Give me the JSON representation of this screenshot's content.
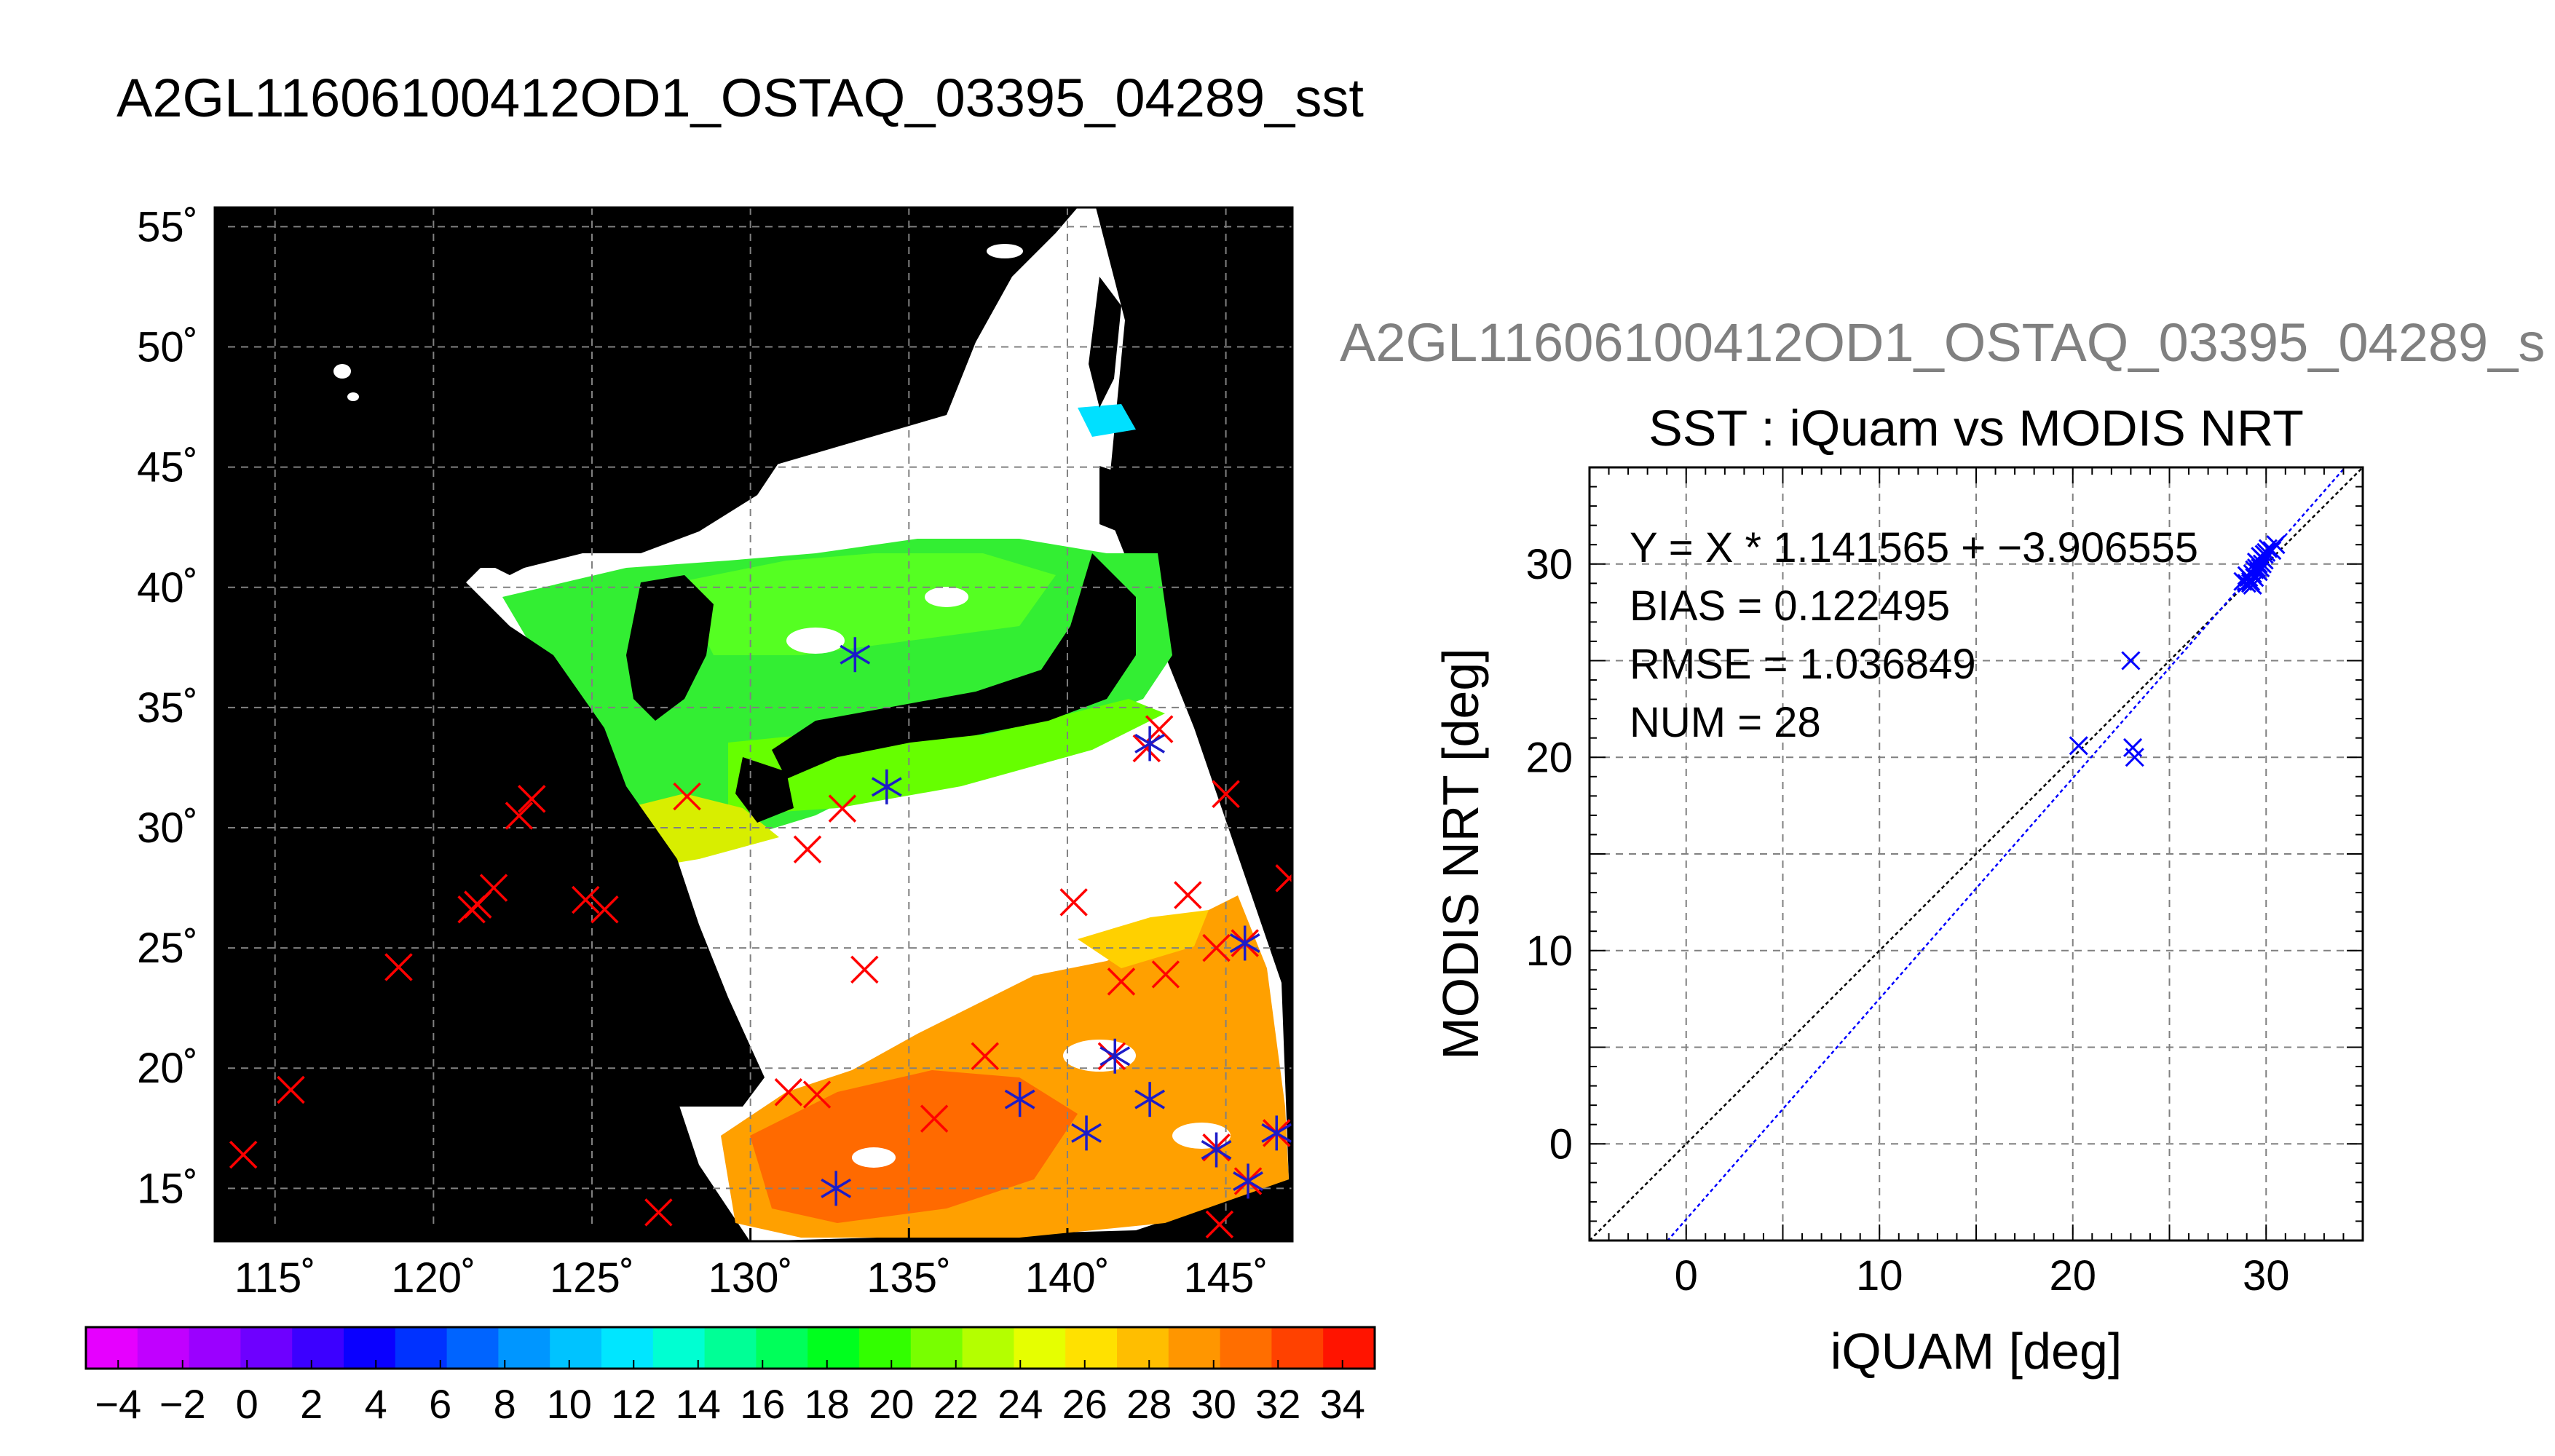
{
  "title_main": "A2GL11606100412OD1_OSTAQ_03395_04289_sst",
  "title_secondary": "A2GL11606100412OD1_OSTAQ_03395_04289_s",
  "colors": {
    "map_background": "#000000",
    "cloud": "#ffffff",
    "grid": "#808080",
    "red_marker": "#ff0000",
    "blue_marker": "#1c1cc8",
    "fit_line": "#0000ff",
    "identity_line": "#000000"
  },
  "chart_data": [
    {
      "type": "map",
      "name": "sst-map",
      "lon_ticks": [
        "115˚",
        "120˚",
        "125˚",
        "130˚",
        "135˚",
        "140˚",
        "145˚"
      ],
      "lat_ticks": [
        "15˚",
        "20˚",
        "25˚",
        "30˚",
        "35˚",
        "40˚",
        "45˚",
        "50˚",
        "55˚"
      ],
      "lon_range": [
        113.1,
        147.1
      ],
      "lat_range": [
        12.8,
        55.8
      ],
      "grid": true,
      "red_markers": [
        [
          114.0,
          16.4
        ],
        [
          115.5,
          19.1
        ],
        [
          118.9,
          24.2
        ],
        [
          121.2,
          26.6
        ],
        [
          121.4,
          26.8
        ],
        [
          121.9,
          27.5
        ],
        [
          122.7,
          30.5
        ],
        [
          123.1,
          31.2
        ],
        [
          124.8,
          27.0
        ],
        [
          125.4,
          26.6
        ],
        [
          127.1,
          14.0
        ],
        [
          128.0,
          31.3
        ],
        [
          131.2,
          19.0
        ],
        [
          131.8,
          29.1
        ],
        [
          132.1,
          18.9
        ],
        [
          132.9,
          30.8
        ],
        [
          133.6,
          24.1
        ],
        [
          135.8,
          17.9
        ],
        [
          137.4,
          20.5
        ],
        [
          140.2,
          26.9
        ],
        [
          141.4,
          20.5
        ],
        [
          141.7,
          23.6
        ],
        [
          142.5,
          33.3
        ],
        [
          142.9,
          34.1
        ],
        [
          143.1,
          23.9
        ],
        [
          143.8,
          27.2
        ],
        [
          144.7,
          16.7
        ],
        [
          144.7,
          25.0
        ],
        [
          144.8,
          13.5
        ],
        [
          145.0,
          31.4
        ],
        [
          145.6,
          25.2
        ],
        [
          145.7,
          15.3
        ],
        [
          146.6,
          17.3
        ],
        [
          147.0,
          27.9
        ]
      ],
      "blue_stars": [
        [
          133.3,
          37.2
        ],
        [
          134.3,
          31.7
        ],
        [
          132.7,
          15.0
        ],
        [
          138.5,
          18.7
        ],
        [
          140.6,
          17.3
        ],
        [
          141.5,
          20.5
        ],
        [
          142.6,
          18.7
        ],
        [
          142.6,
          33.5
        ],
        [
          144.7,
          16.6
        ],
        [
          145.6,
          25.2
        ],
        [
          145.7,
          15.3
        ],
        [
          146.6,
          17.3
        ]
      ]
    },
    {
      "type": "scatter",
      "name": "iquam-vs-modis",
      "title": "SST : iQuam vs MODIS NRT",
      "xlabel": "iQUAM [deg]",
      "ylabel": "MODIS NRT [deg]",
      "xlim": [
        -5,
        35
      ],
      "ylim": [
        -5,
        35
      ],
      "xticks": [
        0,
        10,
        20,
        30
      ],
      "yticks": [
        0,
        10,
        20,
        30
      ],
      "grid": true,
      "fit_slope": 1.141565,
      "fit_intercept": -3.906555,
      "stats": {
        "equation": "Y = X * 1.141565 + −3.906555",
        "bias": "BIAS = 0.122495",
        "rmse": "RMSE = 1.036849",
        "num": "NUM = 28"
      },
      "points": [
        [
          20.3,
          20.6
        ],
        [
          23.0,
          25.0
        ],
        [
          23.1,
          20.5
        ],
        [
          23.2,
          20.0
        ],
        [
          28.8,
          29.1
        ],
        [
          29.0,
          29.0
        ],
        [
          29.1,
          29.3
        ],
        [
          29.2,
          29.1
        ],
        [
          29.3,
          29.5
        ],
        [
          29.4,
          29.3
        ],
        [
          29.5,
          29.8
        ],
        [
          29.5,
          30.1
        ],
        [
          29.6,
          29.6
        ],
        [
          29.7,
          30.4
        ],
        [
          29.8,
          30.0
        ],
        [
          29.9,
          30.2
        ],
        [
          30.0,
          30.6
        ],
        [
          30.1,
          30.8
        ],
        [
          29.2,
          29.0
        ],
        [
          29.4,
          29.7
        ],
        [
          29.6,
          30.0
        ],
        [
          29.8,
          30.3
        ],
        [
          30.3,
          30.7
        ],
        [
          30.5,
          31.0
        ],
        [
          29.0,
          29.4
        ],
        [
          29.3,
          28.9
        ],
        [
          29.7,
          29.8
        ],
        [
          29.9,
          30.5
        ]
      ]
    },
    {
      "type": "colorbar",
      "name": "sst-colorbar",
      "range": [
        -5,
        35
      ],
      "tick_labels": [
        "−4",
        "−2",
        "0",
        "2",
        "4",
        "6",
        "8",
        "10",
        "12",
        "14",
        "16",
        "18",
        "20",
        "22",
        "24",
        "26",
        "28",
        "30",
        "32",
        "34"
      ],
      "colors": [
        "#e600ff",
        "#c100ff",
        "#9b00ff",
        "#6e00ff",
        "#3c00ff",
        "#0a00ff",
        "#0032ff",
        "#0064ff",
        "#0096ff",
        "#00c3ff",
        "#00e6ff",
        "#00ffd2",
        "#00ff96",
        "#00ff5a",
        "#00ff1e",
        "#32ff00",
        "#78ff00",
        "#b4ff00",
        "#e6ff00",
        "#ffe100",
        "#ffbe00",
        "#ff9600",
        "#ff6e00",
        "#ff4100",
        "#ff1400"
      ]
    }
  ]
}
